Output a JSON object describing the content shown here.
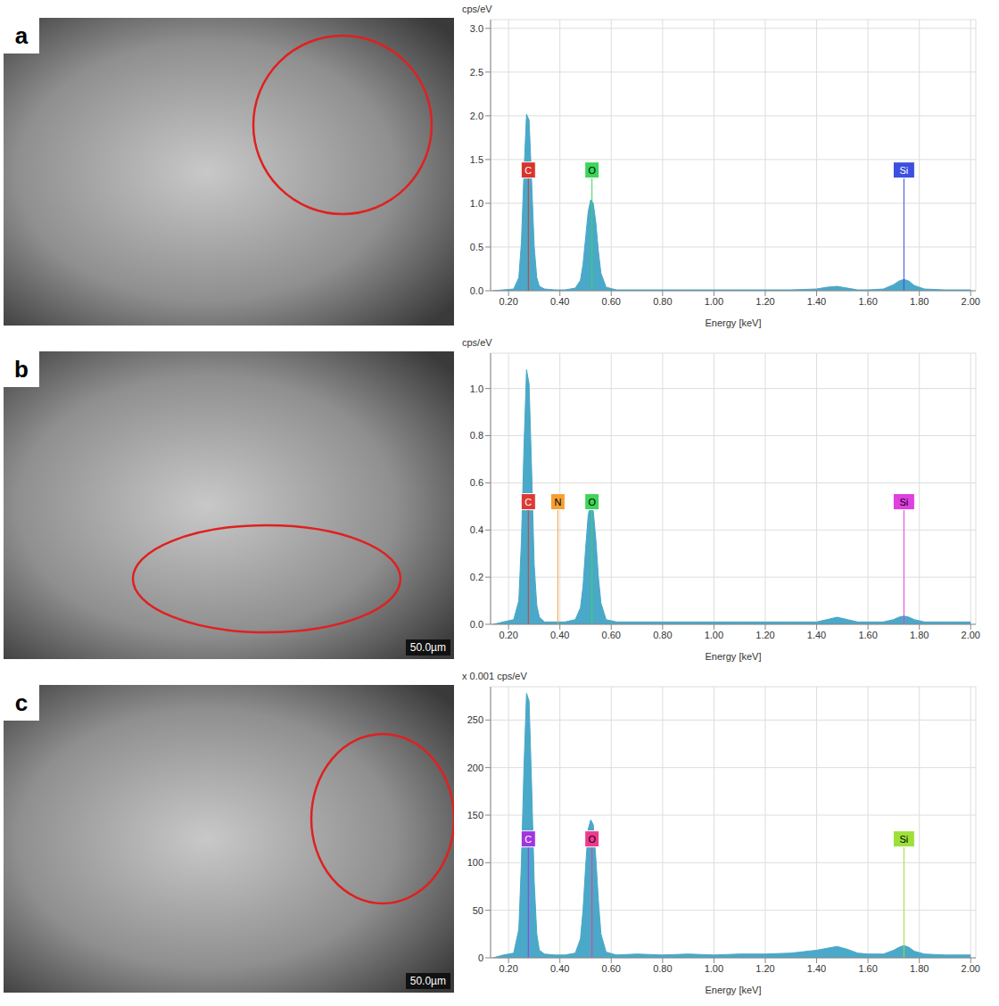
{
  "images": [
    {
      "label": "a"
    },
    {
      "label": "b",
      "scale_bar": "50.0µm"
    },
    {
      "label": "c",
      "scale_bar": "50.0µm"
    }
  ],
  "chart_data": [
    {
      "type": "area",
      "y_label": "cps/eV",
      "x_label": "Energy [keV]",
      "color": "#4aa8c8",
      "grid": true,
      "xlim": [
        0.13,
        2.02
      ],
      "xticks": [
        {
          "value": 0.2,
          "label": "0.20"
        },
        {
          "value": 0.4,
          "label": "0.40"
        },
        {
          "value": 0.6,
          "label": "0.60"
        },
        {
          "value": 0.8,
          "label": "0.80"
        },
        {
          "value": 1.0,
          "label": "1.00"
        },
        {
          "value": 1.2,
          "label": "1.20"
        },
        {
          "value": 1.4,
          "label": "1.40"
        },
        {
          "value": 1.6,
          "label": "1.60"
        },
        {
          "value": 1.8,
          "label": "1.80"
        },
        {
          "value": 2.0,
          "label": "2.00"
        }
      ],
      "ylim": [
        0,
        3.1
      ],
      "yticks": [
        {
          "value": 0,
          "label": "0.0"
        },
        0.5,
        {
          "value": 1,
          "label": "1.0"
        },
        1.5,
        {
          "value": 2,
          "label": "2.0"
        },
        2.5,
        {
          "value": 3,
          "label": "3.0"
        }
      ],
      "x": [
        0.14,
        0.18,
        0.22,
        0.24,
        0.25,
        0.26,
        0.27,
        0.28,
        0.29,
        0.3,
        0.31,
        0.32,
        0.34,
        0.38,
        0.42,
        0.46,
        0.48,
        0.49,
        0.5,
        0.51,
        0.52,
        0.53,
        0.54,
        0.55,
        0.56,
        0.58,
        0.62,
        0.7,
        0.8,
        0.9,
        1.0,
        1.1,
        1.2,
        1.3,
        1.4,
        1.44,
        1.48,
        1.52,
        1.56,
        1.6,
        1.66,
        1.7,
        1.72,
        1.74,
        1.76,
        1.78,
        1.82,
        1.9,
        2.0
      ],
      "values": [
        0,
        0.01,
        0.02,
        0.15,
        0.55,
        1.35,
        2.02,
        1.95,
        1.25,
        0.5,
        0.15,
        0.05,
        0.02,
        0.01,
        0.01,
        0.03,
        0.12,
        0.3,
        0.6,
        0.9,
        1.04,
        1.0,
        0.78,
        0.45,
        0.2,
        0.04,
        0.01,
        0.01,
        0.01,
        0.01,
        0.01,
        0.01,
        0.01,
        0.01,
        0.02,
        0.04,
        0.05,
        0.03,
        0.01,
        0.01,
        0.02,
        0.07,
        0.11,
        0.13,
        0.11,
        0.06,
        0.02,
        0.01,
        0.01
      ],
      "annotations": [
        {
          "label": "C",
          "x": 0.277,
          "y": 1.38,
          "color": "#d9342b"
        },
        {
          "label": "O",
          "x": 0.525,
          "y": 1.38,
          "color": "#39d65a"
        },
        {
          "label": "Si",
          "x": 1.74,
          "y": 1.38,
          "color": "#3b4fe0"
        }
      ]
    },
    {
      "type": "area",
      "y_label": "cps/eV",
      "x_label": "Energy [keV]",
      "color": "#4aa8c8",
      "grid": true,
      "xlim": [
        0.13,
        2.02
      ],
      "xticks": [
        {
          "value": 0.2,
          "label": "0.20"
        },
        {
          "value": 0.4,
          "label": "0.40"
        },
        {
          "value": 0.6,
          "label": "0.60"
        },
        {
          "value": 0.8,
          "label": "0.80"
        },
        {
          "value": 1.0,
          "label": "1.00"
        },
        {
          "value": 1.2,
          "label": "1.20"
        },
        {
          "value": 1.4,
          "label": "1.40"
        },
        {
          "value": 1.6,
          "label": "1.60"
        },
        {
          "value": 1.8,
          "label": "1.80"
        },
        {
          "value": 2.0,
          "label": "2.00"
        }
      ],
      "ylim": [
        0,
        1.15
      ],
      "yticks": [
        {
          "value": 0,
          "label": "0.0"
        },
        0.2,
        0.4,
        0.6,
        0.8,
        {
          "value": 1,
          "label": "1.0"
        }
      ],
      "x": [
        0.14,
        0.18,
        0.22,
        0.24,
        0.25,
        0.26,
        0.27,
        0.28,
        0.29,
        0.3,
        0.31,
        0.32,
        0.34,
        0.38,
        0.42,
        0.46,
        0.48,
        0.49,
        0.5,
        0.51,
        0.52,
        0.53,
        0.54,
        0.55,
        0.56,
        0.58,
        0.62,
        0.7,
        0.8,
        0.9,
        1.0,
        1.1,
        1.2,
        1.3,
        1.4,
        1.44,
        1.48,
        1.52,
        1.56,
        1.6,
        1.66,
        1.7,
        1.72,
        1.74,
        1.76,
        1.78,
        1.82,
        1.9,
        2.0
      ],
      "values": [
        0,
        0.01,
        0.02,
        0.1,
        0.35,
        0.75,
        1.08,
        1.02,
        0.65,
        0.25,
        0.08,
        0.03,
        0.01,
        0.01,
        0.01,
        0.02,
        0.07,
        0.16,
        0.32,
        0.46,
        0.52,
        0.48,
        0.36,
        0.2,
        0.09,
        0.02,
        0.01,
        0.01,
        0.01,
        0.01,
        0.01,
        0.01,
        0.01,
        0.01,
        0.01,
        0.02,
        0.03,
        0.02,
        0.01,
        0.01,
        0.01,
        0.02,
        0.03,
        0.035,
        0.03,
        0.02,
        0.01,
        0.01,
        0.01
      ],
      "annotations": [
        {
          "label": "C",
          "x": 0.277,
          "y": 0.52,
          "color": "#dc3a33"
        },
        {
          "label": "N",
          "x": 0.392,
          "y": 0.52,
          "color": "#f5a033"
        },
        {
          "label": "O",
          "x": 0.525,
          "y": 0.52,
          "color": "#3fd45a"
        },
        {
          "label": "Si",
          "x": 1.74,
          "y": 0.52,
          "color": "#e040e0"
        }
      ]
    },
    {
      "type": "area",
      "y_label": "x 0.001 cps/eV",
      "x_label": "Energy [keV]",
      "color": "#4aa8c8",
      "grid": true,
      "xlim": [
        0.13,
        2.02
      ],
      "xticks": [
        {
          "value": 0.2,
          "label": "0.20"
        },
        {
          "value": 0.4,
          "label": "0.40"
        },
        {
          "value": 0.6,
          "label": "0.60"
        },
        {
          "value": 0.8,
          "label": "0.80"
        },
        {
          "value": 1.0,
          "label": "1.00"
        },
        {
          "value": 1.2,
          "label": "1.20"
        },
        {
          "value": 1.4,
          "label": "1.40"
        },
        {
          "value": 1.6,
          "label": "1.60"
        },
        {
          "value": 1.8,
          "label": "1.80"
        },
        {
          "value": 2.0,
          "label": "2.00"
        }
      ],
      "ylim": [
        0,
        285
      ],
      "yticks": [
        0,
        50,
        100,
        150,
        200,
        250
      ],
      "x": [
        0.14,
        0.18,
        0.22,
        0.24,
        0.25,
        0.26,
        0.27,
        0.28,
        0.29,
        0.3,
        0.31,
        0.32,
        0.34,
        0.38,
        0.42,
        0.46,
        0.48,
        0.49,
        0.5,
        0.51,
        0.52,
        0.53,
        0.54,
        0.55,
        0.56,
        0.58,
        0.62,
        0.7,
        0.8,
        0.9,
        1.0,
        1.1,
        1.2,
        1.3,
        1.4,
        1.44,
        1.48,
        1.52,
        1.56,
        1.6,
        1.66,
        1.7,
        1.72,
        1.74,
        1.76,
        1.78,
        1.82,
        1.9,
        2.0
      ],
      "values": [
        0,
        3,
        5,
        30,
        100,
        200,
        278,
        270,
        180,
        80,
        25,
        8,
        4,
        3,
        3,
        5,
        20,
        50,
        95,
        135,
        145,
        140,
        105,
        60,
        25,
        6,
        3,
        4,
        3,
        4,
        3,
        4,
        4,
        5,
        8,
        10,
        12,
        9,
        5,
        4,
        4,
        8,
        11,
        13,
        11,
        7,
        4,
        3,
        3
      ],
      "annotations": [
        {
          "label": "C",
          "x": 0.277,
          "y": 125,
          "color": "#a035e0"
        },
        {
          "label": "O",
          "x": 0.525,
          "y": 125,
          "color": "#ee3a8c"
        },
        {
          "label": "Si",
          "x": 1.74,
          "y": 125,
          "color": "#9ee03a"
        }
      ]
    }
  ]
}
